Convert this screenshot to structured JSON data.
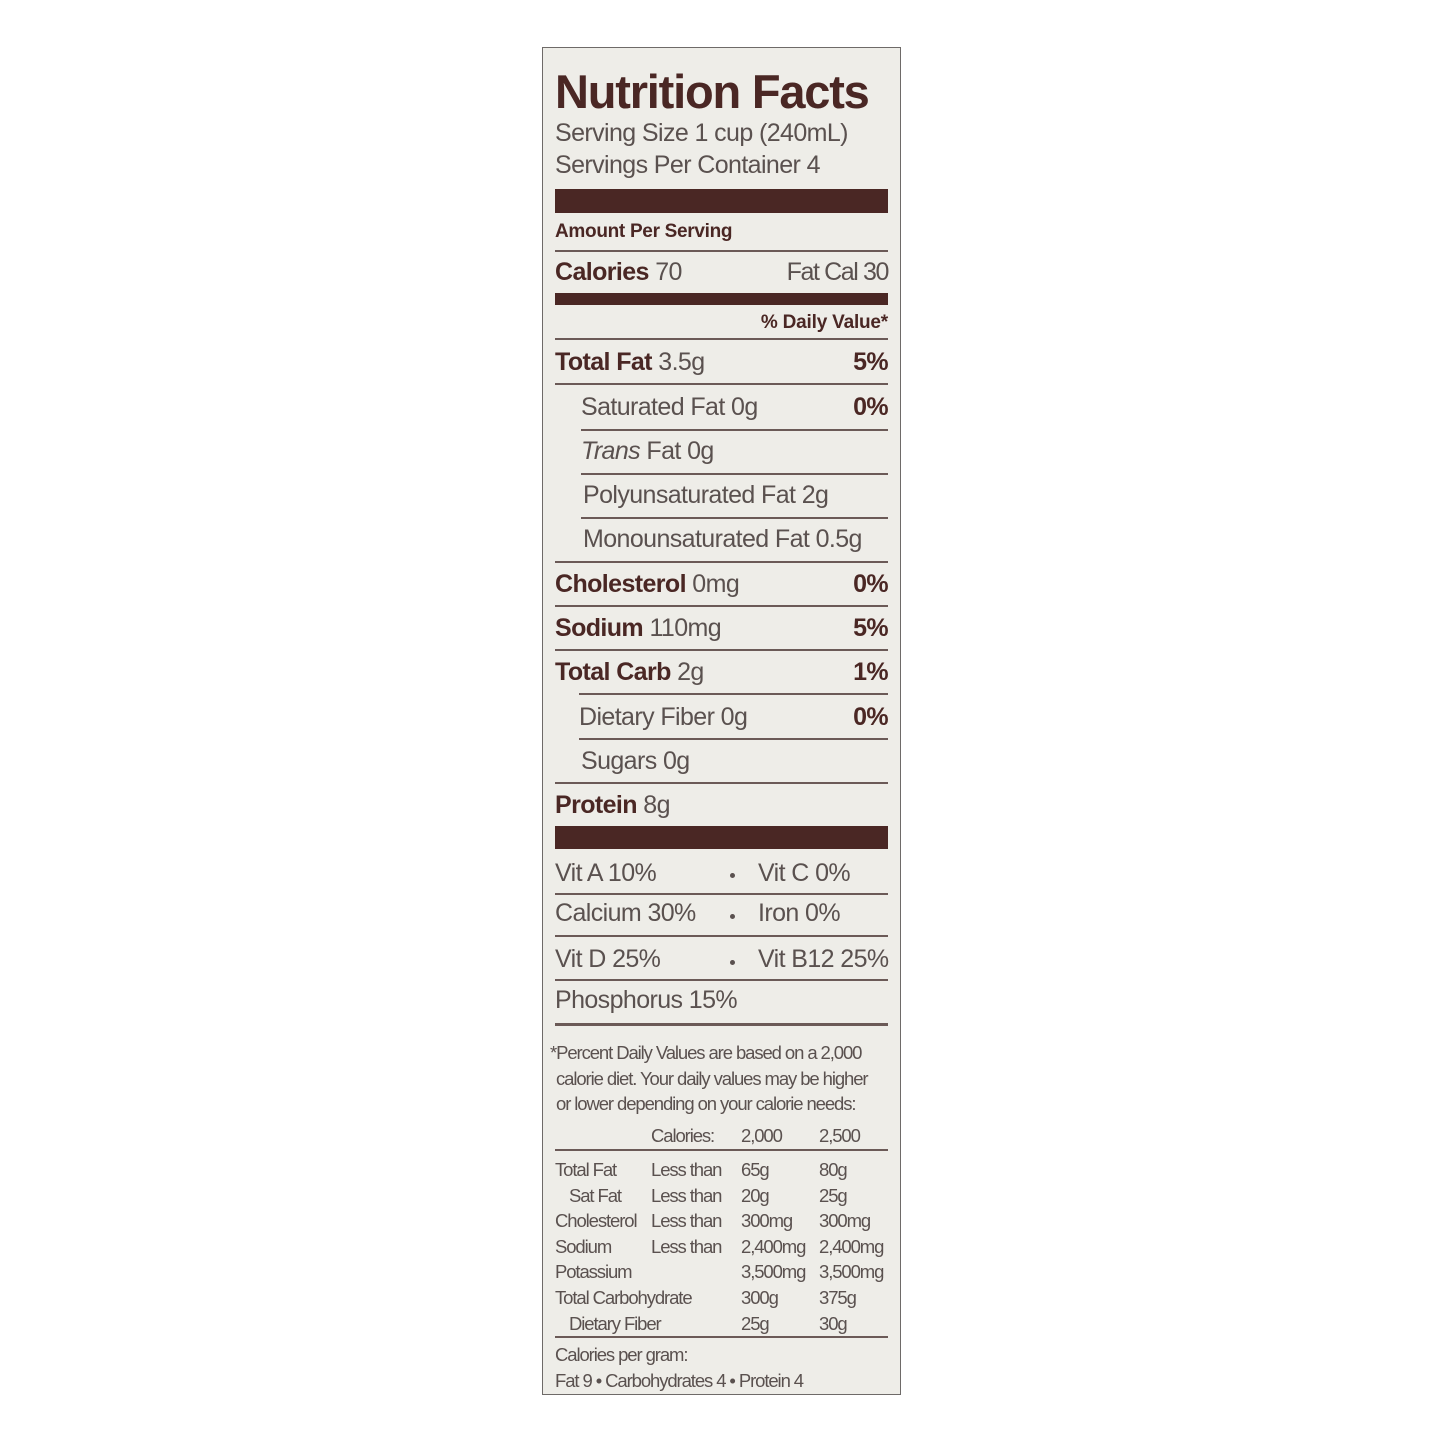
{
  "title": "Nutrition Facts",
  "serving_size": "Serving Size 1 cup (240mL)",
  "servings_per_container": "Servings Per Container 4",
  "amount_per_serving": "Amount Per Serving",
  "calories": {
    "label": "Calories",
    "value": "70",
    "fat_cal": "Fat Cal 30"
  },
  "daily_value_header": "% Daily Value*",
  "nutrients": [
    {
      "label": "Total Fat",
      "amount": "3.5g",
      "dv": "5%"
    },
    {
      "label": "Saturated Fat",
      "amount": "0g",
      "dv": "0%"
    },
    {
      "label": "Trans",
      "label2": "Fat 0g"
    },
    {
      "label": "Polyunsaturated Fat 2g"
    },
    {
      "label": "Monounsaturated Fat 0.5g"
    },
    {
      "label": "Cholesterol",
      "amount": "0mg",
      "dv": "0%"
    },
    {
      "label": "Sodium",
      "amount": "110mg",
      "dv": "5%"
    },
    {
      "label": "Total Carb",
      "amount": "2g",
      "dv": "1%"
    },
    {
      "label": "Dietary Fiber",
      "amount": "0g",
      "dv": "0%"
    },
    {
      "label": "Sugars 0g"
    },
    {
      "label": "Protein",
      "amount": "8g"
    }
  ],
  "vitamins": [
    {
      "left": "Vit A 10%",
      "right": "Vit C 0%"
    },
    {
      "left": "Calcium 30%",
      "right": "Iron 0%"
    },
    {
      "left": "Vit D 25%",
      "right": "Vit B12 25%"
    },
    {
      "left": "Phosphorus 15%"
    }
  ],
  "footnote": {
    "lines": [
      "*Percent Daily Values are based on a 2,000",
      "calorie diet. Your daily values may be higher",
      "or lower depending on your calorie needs:"
    ],
    "header": {
      "label": "Calories:",
      "c2000": "2,000",
      "c2500": "2,500"
    },
    "rows": [
      {
        "name": "Total Fat",
        "qual": "Less than",
        "a": "65g",
        "b": "80g"
      },
      {
        "name": "Sat Fat",
        "qual": "Less than",
        "a": "20g",
        "b": "25g"
      },
      {
        "name": "Cholesterol",
        "qual": "Less than",
        "a": "300mg",
        "b": "300mg"
      },
      {
        "name": "Sodium",
        "qual": "Less than",
        "a": "2,400mg",
        "b": "2,400mg"
      },
      {
        "name": "Potassium",
        "qual": "",
        "a": "3,500mg",
        "b": "3,500mg"
      },
      {
        "name": "Total Carbohydrate",
        "qual": "",
        "a": "300g",
        "b": "375g"
      },
      {
        "name": "Dietary Fiber",
        "qual": "",
        "a": "25g",
        "b": "30g"
      }
    ],
    "cal_per_gram": "Calories per gram:",
    "cal_per_gram_values": "Fat 9 • Carbohydrates 4 • Protein 4"
  },
  "colors": {
    "ink": "#4a2724",
    "text": "#5a514f",
    "background": "#eeede8"
  }
}
